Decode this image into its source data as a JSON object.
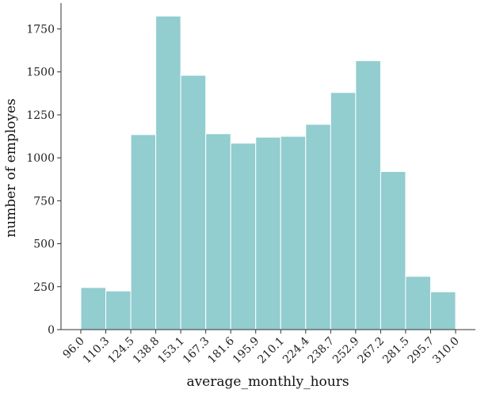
{
  "chart_data": {
    "type": "bar",
    "subtype": "histogram",
    "bin_edges": [
      "96.0",
      "110.3",
      "124.5",
      "138.8",
      "153.1",
      "167.3",
      "181.6",
      "195.9",
      "210.1",
      "224.4",
      "238.7",
      "252.9",
      "267.2",
      "281.5",
      "295.7",
      "310.0"
    ],
    "values": [
      245,
      225,
      1135,
      1825,
      1480,
      1140,
      1085,
      1120,
      1125,
      1195,
      1380,
      1565,
      920,
      310,
      220
    ],
    "xlabel": "average_monthly_hours",
    "ylabel": "number of employes",
    "ylim": [
      0,
      1900
    ],
    "yticks": [
      "0",
      "250",
      "500",
      "750",
      "1000",
      "1250",
      "1500",
      "1750"
    ],
    "bar_color": "#92cdd0",
    "grid": false,
    "legend": "none"
  }
}
